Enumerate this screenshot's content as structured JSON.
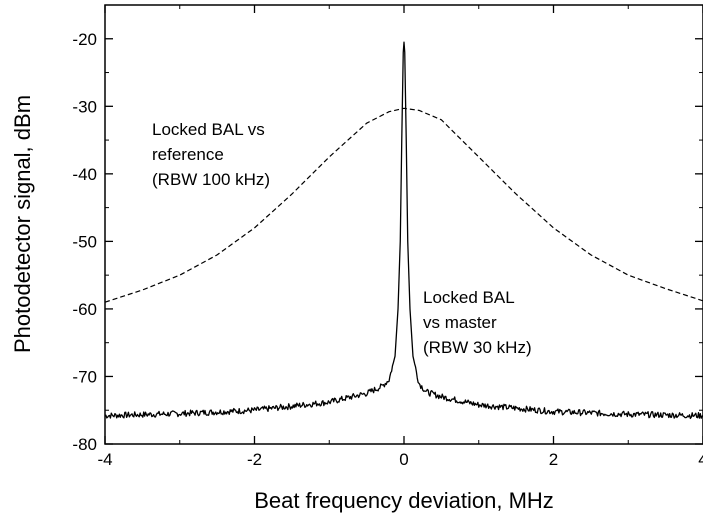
{
  "chart_data": {
    "type": "line",
    "xlabel": "Beat frequency deviation, MHz",
    "ylabel": "Photodetector signal, dBm",
    "xlim": [
      -4,
      4
    ],
    "ylim": [
      -80,
      -15
    ],
    "x_ticks": [
      -4,
      -2,
      0,
      2,
      4
    ],
    "x_tick_labels": [
      "-4",
      "-2",
      "0",
      "2",
      "4"
    ],
    "y_ticks": [
      -80,
      -70,
      -60,
      -50,
      -40,
      -30,
      -20
    ],
    "y_tick_labels": [
      "-80",
      "-70",
      "-60",
      "-50",
      "-40",
      "-30",
      "-20"
    ],
    "grid": false,
    "series": [
      {
        "style": "dashed",
        "x": [
          -4.0,
          -3.5,
          -3.0,
          -2.5,
          -2.0,
          -1.5,
          -1.0,
          -0.5,
          -0.2,
          0.0,
          0.2,
          0.5,
          1.0,
          1.5,
          2.0,
          2.5,
          3.0,
          3.5,
          4.0
        ],
        "values": [
          -59.0,
          -57.2,
          -55.0,
          -52.0,
          -48.0,
          -43.0,
          -37.5,
          -32.5,
          -30.8,
          -30.3,
          -30.6,
          -32.0,
          -37.5,
          -43.0,
          -48.0,
          -52.0,
          -55.0,
          -57.0,
          -58.8
        ]
      },
      {
        "style": "solid",
        "x": [
          -4.0,
          -3.0,
          -2.0,
          -1.0,
          -0.5,
          -0.3,
          -0.2,
          -0.12,
          -0.08,
          -0.05,
          -0.03,
          -0.01,
          0.0,
          0.01,
          0.03,
          0.05,
          0.08,
          0.12,
          0.2,
          0.3,
          0.5,
          1.0,
          2.0,
          3.0,
          4.0
        ],
        "values": [
          -75.8,
          -75.5,
          -75.0,
          -73.8,
          -72.5,
          -71.5,
          -70.5,
          -67.0,
          -60.0,
          -50.0,
          -35.0,
          -22.0,
          -20.5,
          -22.0,
          -35.0,
          -50.0,
          -60.0,
          -67.0,
          -71.0,
          -72.3,
          -73.0,
          -74.2,
          -75.2,
          -75.6,
          -75.8
        ]
      }
    ],
    "annotations": [
      {
        "lines": [
          "Locked BAL vs",
          "reference",
          "(RBW 100 kHz)"
        ]
      },
      {
        "lines": [
          "Locked BAL",
          "vs master",
          "(RBW 30 kHz)"
        ]
      }
    ]
  }
}
